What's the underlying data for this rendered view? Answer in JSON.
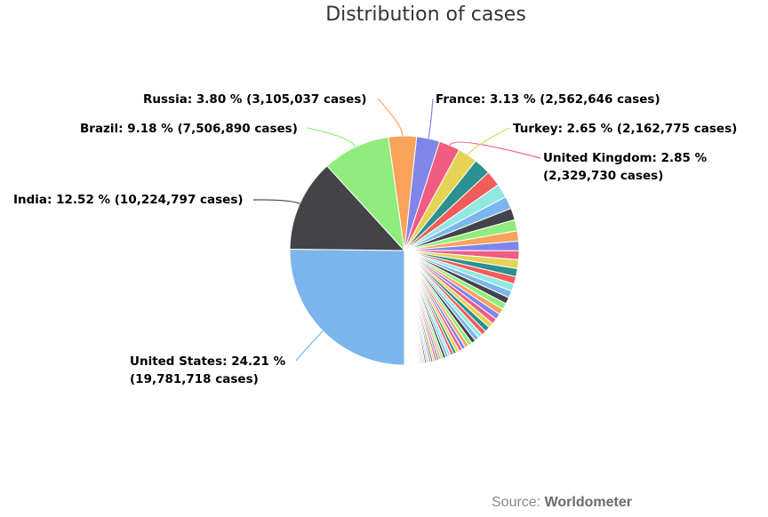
{
  "chart_data": {
    "type": "pie",
    "title": "Distribution of cases",
    "slices": [
      {
        "label": "United States: 24.21 % (19,781,718 cases)",
        "value": 24.21,
        "color": "#7cb5ec"
      },
      {
        "label": "India: 12.52 % (10,224,797 cases)",
        "value": 12.52,
        "color": "#434348"
      },
      {
        "label": "Brazil: 9.18 % (7,506,890 cases)",
        "value": 9.18,
        "color": "#90ed7d"
      },
      {
        "label": "Russia: 3.80 % (3,105,037 cases)",
        "value": 3.8,
        "color": "#f7a35c"
      },
      {
        "label": "France: 3.13 % (2,562,646 cases)",
        "value": 3.13,
        "color": "#8085e9"
      },
      {
        "label": "United Kingdom: 2.85 % (2,329,730 cases)",
        "value": 2.85,
        "color": "#f15c80"
      },
      {
        "label": "Turkey: 2.65 % (2,162,775 cases)",
        "value": 2.65,
        "color": "#e4d354"
      },
      {
        "label": "",
        "value": 2.3,
        "color": "#2b908f"
      },
      {
        "label": "",
        "value": 2.1,
        "color": "#f45b5b"
      },
      {
        "label": "",
        "value": 1.9,
        "color": "#91e8e1"
      },
      {
        "label": "",
        "value": 1.7,
        "color": "#7cb5ec"
      },
      {
        "label": "",
        "value": 1.6,
        "color": "#434348"
      },
      {
        "label": "",
        "value": 1.5,
        "color": "#90ed7d"
      },
      {
        "label": "",
        "value": 1.4,
        "color": "#f7a35c"
      },
      {
        "label": "",
        "value": 1.3,
        "color": "#8085e9"
      },
      {
        "label": "",
        "value": 1.2,
        "color": "#f15c80"
      },
      {
        "label": "",
        "value": 1.2,
        "color": "#e4d354"
      },
      {
        "label": "",
        "value": 1.1,
        "color": "#2b908f"
      },
      {
        "label": "",
        "value": 1.0,
        "color": "#f45b5b"
      },
      {
        "label": "",
        "value": 1.0,
        "color": "#91e8e1"
      },
      {
        "label": "",
        "value": 0.95,
        "color": "#7cb5ec"
      },
      {
        "label": "",
        "value": 0.9,
        "color": "#434348"
      },
      {
        "label": "",
        "value": 0.85,
        "color": "#90ed7d"
      },
      {
        "label": "",
        "value": 0.8,
        "color": "#f7a35c"
      },
      {
        "label": "",
        "value": 0.8,
        "color": "#8085e9"
      },
      {
        "label": "",
        "value": 0.75,
        "color": "#f15c80"
      },
      {
        "label": "",
        "value": 0.7,
        "color": "#e4d354"
      },
      {
        "label": "",
        "value": 0.7,
        "color": "#2b908f"
      },
      {
        "label": "",
        "value": 0.65,
        "color": "#f45b5b"
      },
      {
        "label": "",
        "value": 0.6,
        "color": "#91e8e1"
      },
      {
        "label": "",
        "value": 0.6,
        "color": "#7cb5ec"
      },
      {
        "label": "",
        "value": 0.55,
        "color": "#434348"
      },
      {
        "label": "",
        "value": 0.55,
        "color": "#90ed7d"
      },
      {
        "label": "",
        "value": 0.5,
        "color": "#f7a35c"
      },
      {
        "label": "",
        "value": 0.5,
        "color": "#8085e9"
      },
      {
        "label": "",
        "value": 0.45,
        "color": "#f15c80"
      },
      {
        "label": "",
        "value": 0.45,
        "color": "#e4d354"
      },
      {
        "label": "",
        "value": 0.4,
        "color": "#2b908f"
      },
      {
        "label": "",
        "value": 0.4,
        "color": "#f45b5b"
      },
      {
        "label": "",
        "value": 0.38,
        "color": "#91e8e1"
      },
      {
        "label": "",
        "value": 0.36,
        "color": "#7cb5ec"
      },
      {
        "label": "",
        "value": 0.34,
        "color": "#434348"
      },
      {
        "label": "",
        "value": 0.32,
        "color": "#90ed7d"
      },
      {
        "label": "",
        "value": 0.3,
        "color": "#f7a35c"
      },
      {
        "label": "",
        "value": 0.3,
        "color": "#8085e9"
      },
      {
        "label": "",
        "value": 0.28,
        "color": "#f15c80"
      },
      {
        "label": "",
        "value": 0.26,
        "color": "#e4d354"
      },
      {
        "label": "",
        "value": 0.25,
        "color": "#2b908f"
      },
      {
        "label": "",
        "value": 0.24,
        "color": "#f45b5b"
      },
      {
        "label": "",
        "value": 0.22,
        "color": "#91e8e1"
      },
      {
        "label": "",
        "value": 0.2,
        "color": "#7cb5ec"
      },
      {
        "label": "",
        "value": 0.2,
        "color": "#434348"
      },
      {
        "label": "",
        "value": 0.18,
        "color": "#90ed7d"
      },
      {
        "label": "",
        "value": 0.17,
        "color": "#f7a35c"
      },
      {
        "label": "",
        "value": 0.16,
        "color": "#8085e9"
      },
      {
        "label": "",
        "value": 0.15,
        "color": "#f15c80"
      },
      {
        "label": "",
        "value": 0.14,
        "color": "#e4d354"
      },
      {
        "label": "",
        "value": 0.13,
        "color": "#2b908f"
      },
      {
        "label": "",
        "value": 0.12,
        "color": "#f45b5b"
      },
      {
        "label": "",
        "value": 0.12,
        "color": "#91e8e1"
      },
      {
        "label": "",
        "value": 0.11,
        "color": "#7cb5ec"
      },
      {
        "label": "",
        "value": 0.1,
        "color": "#434348"
      },
      {
        "label": "",
        "value": 0.1,
        "color": "#90ed7d"
      },
      {
        "label": "",
        "value": 0.1,
        "color": "#f7a35c"
      },
      {
        "label": "",
        "value": 0.09,
        "color": "#8085e9"
      },
      {
        "label": "",
        "value": 0.09,
        "color": "#f15c80"
      },
      {
        "label": "",
        "value": 0.08,
        "color": "#e4d354"
      },
      {
        "label": "",
        "value": 0.08,
        "color": "#2b908f"
      },
      {
        "label": "",
        "value": 0.07,
        "color": "#f45b5b"
      },
      {
        "label": "",
        "value": 0.07,
        "color": "#91e8e1"
      },
      {
        "label": "",
        "value": 0.06,
        "color": "#7cb5ec"
      },
      {
        "label": "",
        "value": 0.06,
        "color": "#434348"
      },
      {
        "label": "",
        "value": 0.05,
        "color": "#90ed7d"
      },
      {
        "label": "",
        "value": 0.05,
        "color": "#f7a35c"
      },
      {
        "label": "",
        "value": 0.05,
        "color": "#8085e9"
      },
      {
        "label": "",
        "value": 0.04,
        "color": "#f15c80"
      },
      {
        "label": "",
        "value": 0.04,
        "color": "#e4d354"
      },
      {
        "label": "",
        "value": 0.04,
        "color": "#2b908f"
      },
      {
        "label": "",
        "value": 0.03,
        "color": "#f45b5b"
      },
      {
        "label": "",
        "value": 0.03,
        "color": "#91e8e1"
      },
      {
        "label": "",
        "value": 0.03,
        "color": "#7cb5ec"
      },
      {
        "label": "",
        "value": 0.03,
        "color": "#434348"
      },
      {
        "label": "",
        "value": 0.02,
        "color": "#90ed7d"
      },
      {
        "label": "",
        "value": 0.02,
        "color": "#f7a35c"
      },
      {
        "label": "",
        "value": 0.02,
        "color": "#8085e9"
      },
      {
        "label": "",
        "value": 0.02,
        "color": "#f15c80"
      },
      {
        "label": "",
        "value": 0.02,
        "color": "#e4d354"
      },
      {
        "label": "",
        "value": 0.01,
        "color": "#2b908f"
      },
      {
        "label": "",
        "value": 0.01,
        "color": "#f45b5b"
      },
      {
        "label": "",
        "value": 0.01,
        "color": "#91e8e1"
      },
      {
        "label": "",
        "value": 0.01,
        "color": "#7cb5ec"
      },
      {
        "label": "",
        "value": 0.01,
        "color": "#434348"
      },
      {
        "label": "",
        "value": 0.01,
        "color": "#90ed7d"
      },
      {
        "label": "",
        "value": 0.01,
        "color": "#f7a35c"
      }
    ]
  },
  "source": {
    "prefix": "Source: ",
    "name": "Worldometer"
  }
}
